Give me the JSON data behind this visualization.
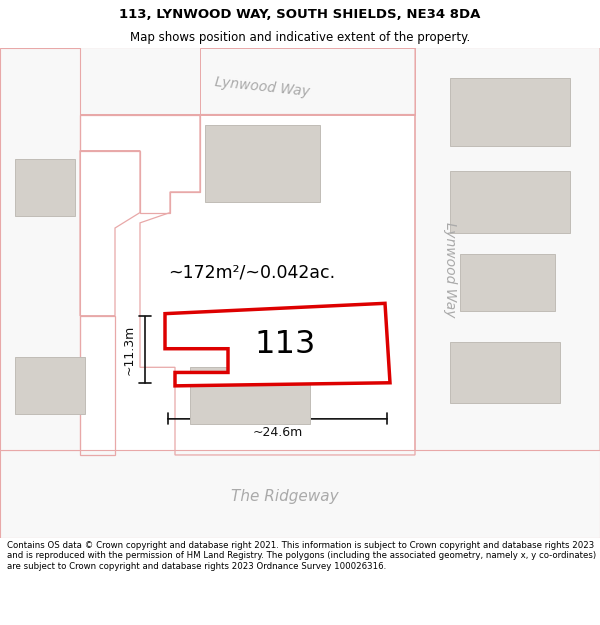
{
  "title": "113, LYNWOOD WAY, SOUTH SHIELDS, NE34 8DA",
  "subtitle": "Map shows position and indicative extent of the property.",
  "footer": "Contains OS data © Crown copyright and database right 2021. This information is subject to Crown copyright and database rights 2023 and is reproduced with the permission of HM Land Registry. The polygons (including the associated geometry, namely x, y co-ordinates) are subject to Crown copyright and database rights 2023 Ordnance Survey 100026316.",
  "map_bg": "#eeebe5",
  "road_fill": "#f8f8f8",
  "building_fill": "#d4d0ca",
  "building_edge": "#c0bcb6",
  "plot_outline_color": "#dd0000",
  "plot_fill": "#ffffff",
  "road_line_color": "#e8a8a8",
  "dim_color": "#111111",
  "street_label_color": "#aaaaaa",
  "property_label": "113",
  "area_label": "~172m²/~0.042ac.",
  "width_label": "~24.6m",
  "height_label": "~11.3m",
  "lynwood_way_top": "Lynwood Way",
  "lynwood_way_right": "Lynwood Way",
  "the_ridgeway": "The Ridgeway",
  "title_fontsize": 9.5,
  "subtitle_fontsize": 8.5,
  "footer_fontsize": 6.2
}
